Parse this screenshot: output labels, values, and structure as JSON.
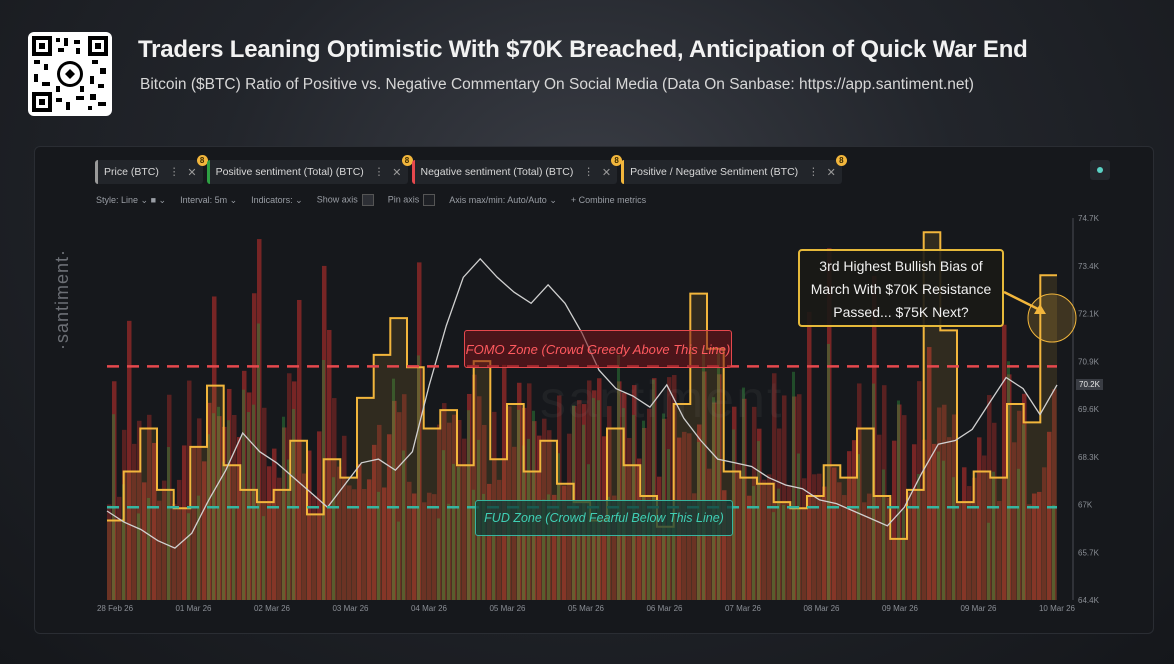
{
  "header": {
    "title": "Traders Leaning Optimistic With $70K Breached, Anticipation of Quick War End",
    "subtitle": "Bitcoin ($BTC) Ratio of Positive vs. Negative Commentary On Social Media (Data On Sanbase: https://app.santiment.net)"
  },
  "brand": {
    "side_text": "·santiment·",
    "watermark": "santiment"
  },
  "toolbar": {
    "metrics": [
      {
        "label": "Price (BTC)",
        "color": "#9a9a9a"
      },
      {
        "label": "Positive sentiment (Total) (BTC)",
        "color": "#2ea043"
      },
      {
        "label": "Negative sentiment (Total) (BTC)",
        "color": "#e5484d"
      },
      {
        "label": "Positive / Negative Sentiment (BTC)",
        "color": "#f2b63c"
      }
    ],
    "badge": "8",
    "options": {
      "style": "Style: Line",
      "interval": "Interval: 5m",
      "indicators": "Indicators:",
      "show_axis": "Show axis",
      "pin_axis": "Pin axis",
      "axis_minmax": "Axis max/min: Auto/Auto",
      "combine": "+ Combine metrics"
    }
  },
  "annotations": {
    "fomo": "FOMO Zone (Crowd Greedy Above This Line)",
    "fud": "FUD Zone (Crowd Fearful Below This Line)",
    "callout": [
      "3rd Highest Bullish Bias of",
      "March With $70K Resistance",
      "Passed... $75K Next?"
    ],
    "current_price_tag": "70.2K"
  },
  "colors": {
    "price": "#d0d0d0",
    "positive": "#2ea043",
    "negative": "#d93a3f",
    "ratio": "#f2b63c",
    "fomo_line": "#e5484d",
    "fud_line": "#36b5a0"
  },
  "chart_data": {
    "type": "line",
    "x_ticks": [
      "28 Feb 26",
      "01 Mar 26",
      "02 Mar 26",
      "03 Mar 26",
      "04 Mar 26",
      "05 Mar 26",
      "05 Mar 26",
      "06 Mar 26",
      "07 Mar 26",
      "08 Mar 26",
      "09 Mar 26",
      "09 Mar 26",
      "10 Mar 26"
    ],
    "y_ticks": [
      "74.7K",
      "73.4K",
      "72.1K",
      "70.9K",
      "69.6K",
      "68.3K",
      "67K",
      "65.7K",
      "64.4K"
    ],
    "ylim": [
      64.4,
      74.7
    ],
    "fomo_level": 70.7,
    "fud_level": 66.9,
    "series": [
      {
        "name": "Price (BTC)",
        "values": [
          66.8,
          66.5,
          66.3,
          66.0,
          65.8,
          66.2,
          67.1,
          67.9,
          68.9,
          68.4,
          68.1,
          67.7,
          67.3,
          66.9,
          67.5,
          68.1,
          68.2,
          67.9,
          68.4,
          70.2,
          71.8,
          73.1,
          73.6,
          73.1,
          72.7,
          72.4,
          72.9,
          72.4,
          71.6,
          70.6,
          70.1,
          69.9,
          69.6,
          70.2,
          69.3,
          68.7,
          68.2,
          68.1,
          68.0,
          67.7,
          67.5,
          67.4,
          67.1,
          67.0,
          66.8,
          66.6,
          66.4,
          66.9,
          67.8,
          68.6,
          68.7,
          69.0,
          69.7,
          70.4,
          70.1,
          69.4,
          70.2
        ]
      },
      {
        "name": "Positive / Negative Sentiment (BTC)",
        "values": [
          1.1,
          1.9,
          2.6,
          1.6,
          1.3,
          2.3,
          3.3,
          2.0,
          1.6,
          1.4,
          1.6,
          2.4,
          1.2,
          2.1,
          1.8,
          3.1,
          3.8,
          4.4,
          3.6,
          2.6,
          2.9,
          2.0,
          3.7,
          2.1,
          3.0,
          1.9,
          2.4,
          1.7,
          1.4,
          1.1,
          2.6,
          2.0,
          1.5,
          1.0,
          3.0,
          4.8,
          3.9,
          1.9,
          1.8,
          1.7,
          1.4,
          1.3,
          1.5,
          2.0,
          1.8,
          2.6,
          1.5,
          0.8,
          1.6,
          5.8,
          4.2,
          1.4,
          1.9,
          1.8,
          3.0,
          2.7,
          5.1
        ]
      }
    ]
  }
}
